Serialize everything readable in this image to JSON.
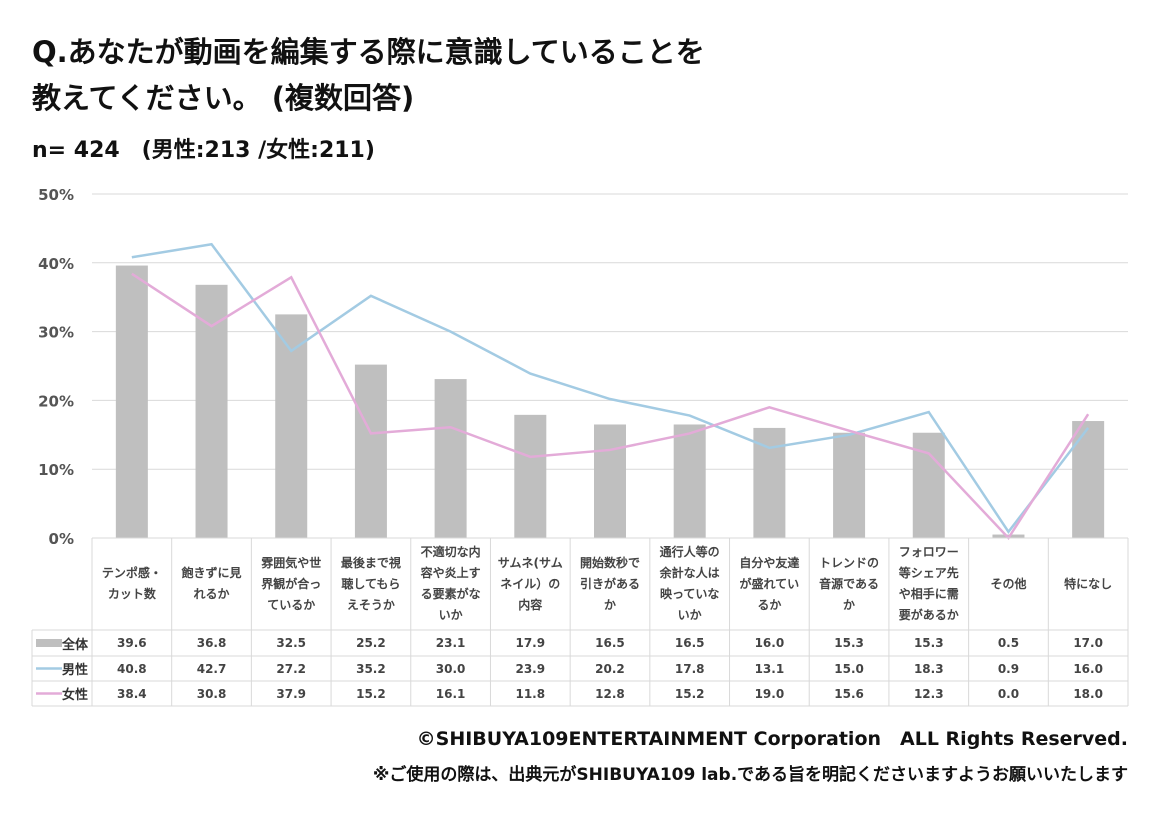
{
  "title_line1": "Q.あなたが動画を編集する際に意識していることを",
  "title_line2": "教えてください。 (複数回答)",
  "sample": "n= 424　(男性:213 /女性:211)",
  "copyright": "©SHIBUYA109ENTERTAINMENT Corporation　ALL Rights Reserved.",
  "note": "※ご使用の際は、出典元がSHIBUYA109 lab.である旨を明記くださいますようお願いいたします",
  "colors": {
    "total": "#bfbfbf",
    "male": "#a3cbe3",
    "female": "#e3abd8",
    "grid": "#d9d9d9"
  },
  "chart_data": {
    "type": "bar",
    "ylim": [
      0,
      50
    ],
    "yticks": [
      "0%",
      "10%",
      "20%",
      "30%",
      "40%",
      "50%"
    ],
    "grid": true,
    "categories": [
      "テンポ感・カット数",
      "飽きずに見れるか",
      "雰囲気や世界観が合っているか",
      "最後まで視聴してもらえそうか",
      "不適切な内容や炎上する要素がないか",
      "サムネ(サムネイル）の内容",
      "開始数秒で引きがあるか",
      "通行人等の余計な人は映っていないか",
      "自分や友達が盛れているか",
      "トレンドの音源であるか",
      "フォロワー等シェア先や相手に需要があるか",
      "その他",
      "特になし"
    ],
    "series": [
      {
        "name": "全体",
        "kind": "bar",
        "values": [
          39.6,
          36.8,
          32.5,
          25.2,
          23.1,
          17.9,
          16.5,
          16.5,
          16.0,
          15.3,
          15.3,
          0.5,
          17.0
        ]
      },
      {
        "name": "男性",
        "kind": "line",
        "values": [
          40.8,
          42.7,
          27.2,
          35.2,
          30.0,
          23.9,
          20.2,
          17.8,
          13.1,
          15.0,
          18.3,
          0.9,
          16.0
        ]
      },
      {
        "name": "女性",
        "kind": "line",
        "values": [
          38.4,
          30.8,
          37.9,
          15.2,
          16.1,
          11.8,
          12.8,
          15.2,
          19.0,
          15.6,
          12.3,
          0.0,
          18.0
        ]
      }
    ]
  }
}
